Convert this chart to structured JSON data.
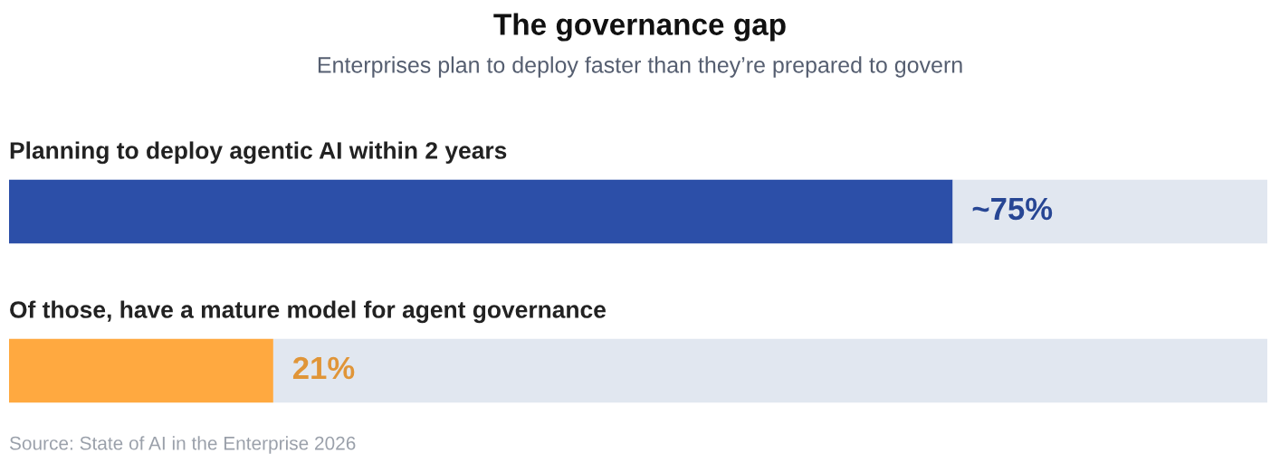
{
  "chart_data": {
    "type": "bar",
    "orientation": "horizontal",
    "stacked": true,
    "title": "The governance gap",
    "subtitle": "Enterprises plan to deploy faster than they’re prepared to govern",
    "categories": [
      "Planning to deploy agentic AI within 2 years",
      "Of those, have a mature model for agent governance"
    ],
    "series": [
      {
        "colors": [
          "#2c4fa8",
          "#ffa940"
        ],
        "values": [
          75,
          21
        ],
        "value_labels": [
          "~75%",
          "21%"
        ]
      },
      {
        "color": "#e1e7f0",
        "values": [
          25,
          79
        ]
      }
    ],
    "xlim": [
      0,
      100
    ],
    "annotations": [
      "Source: State of AI in the Enterprise 2026"
    ]
  }
}
